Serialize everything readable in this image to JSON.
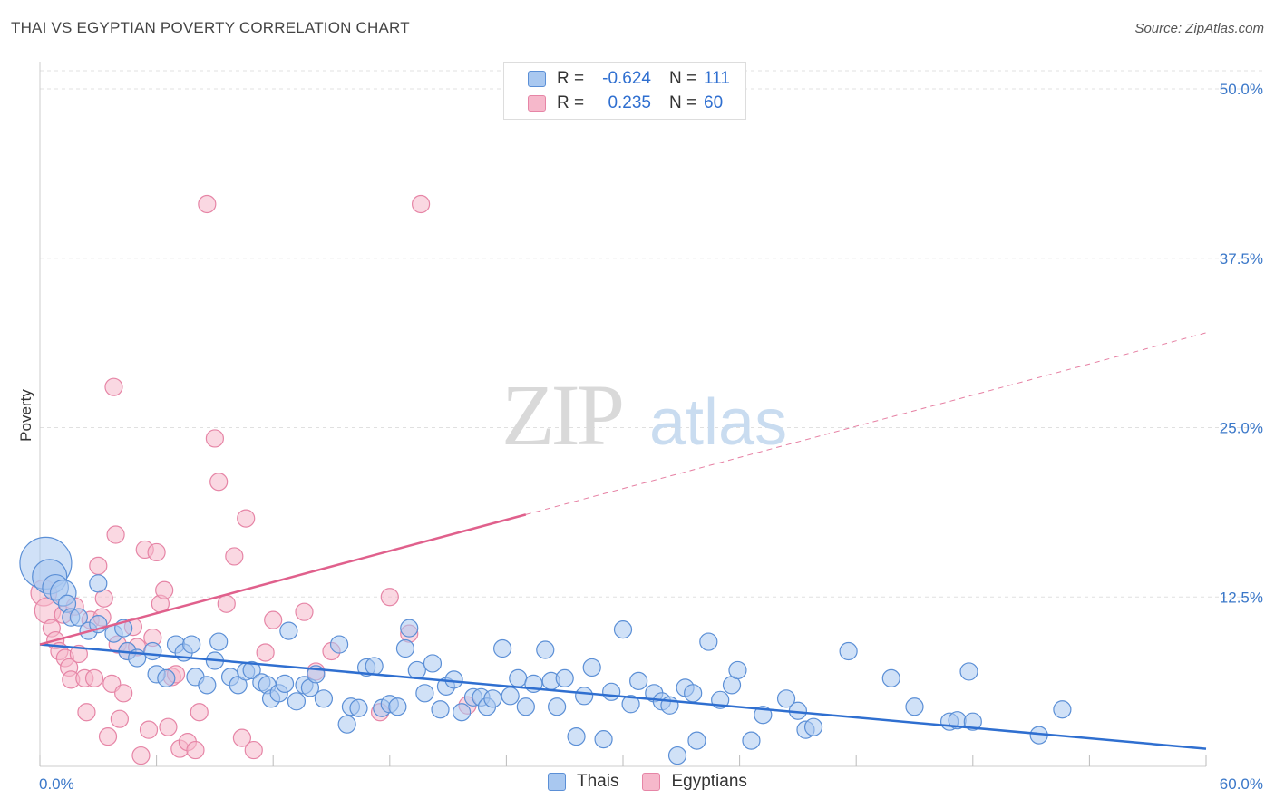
{
  "title": "THAI VS EGYPTIAN POVERTY CORRELATION CHART",
  "source": "Source: ZipAtlas.com",
  "watermark": {
    "zip": "ZIP",
    "atlas": "atlas"
  },
  "colors": {
    "thais_fill": "#a9c8f0",
    "thais_stroke": "#5b8fd6",
    "thais_line": "#2f6fd0",
    "egyptians_fill": "#f6b8cb",
    "egyptians_stroke": "#e685a6",
    "egyptians_line": "#e0608c",
    "tick_label": "#3b78c9",
    "grid": "#e0e0e0"
  },
  "legend_top": {
    "rows": [
      {
        "series": "thais",
        "r_label": "R =",
        "r_value": "-0.624",
        "n_label": "N =",
        "n_value": "111"
      },
      {
        "series": "egyptians",
        "r_label": "R =",
        "r_value": "0.235",
        "n_label": "N =",
        "n_value": "60"
      }
    ]
  },
  "legend_bottom": [
    "Thais",
    "Egyptians"
  ],
  "chart_data": {
    "type": "scatter",
    "ylabel": "Poverty",
    "xlim": [
      0,
      60
    ],
    "ylim": [
      0,
      50
    ],
    "x_tick_labels": {
      "min": "0.0%",
      "max": "60.0%"
    },
    "y_ticks": [
      {
        "value": 12.5,
        "label": "12.5%"
      },
      {
        "value": 25,
        "label": "25.0%"
      },
      {
        "value": 37.5,
        "label": "37.5%"
      },
      {
        "value": 50,
        "label": "50.0%"
      }
    ],
    "grid": true,
    "legend_position": "top-center",
    "series": [
      {
        "name": "Thais",
        "trend": {
          "x_start": 0,
          "y_start": 9.0,
          "x_end": 60,
          "y_end": 1.3,
          "dashed_from": null
        },
        "points": [
          [
            0.3,
            15.0,
            3
          ],
          [
            0.5,
            14.0,
            2
          ],
          [
            0.8,
            13.2,
            1.5
          ],
          [
            1.2,
            12.8,
            1.5
          ],
          [
            1.4,
            12.0,
            1
          ],
          [
            1.6,
            11.0,
            1
          ],
          [
            2.0,
            11.0,
            1
          ],
          [
            3.0,
            13.5,
            1
          ],
          [
            2.5,
            10.0,
            1
          ],
          [
            3.0,
            10.5,
            1
          ],
          [
            3.8,
            9.8,
            1
          ],
          [
            4.3,
            10.2,
            1
          ],
          [
            4.5,
            8.5,
            1
          ],
          [
            5.0,
            8.0,
            1
          ],
          [
            5.8,
            8.5,
            1
          ],
          [
            6.0,
            6.8,
            1
          ],
          [
            6.5,
            6.5,
            1
          ],
          [
            7.0,
            9.0,
            1
          ],
          [
            7.4,
            8.4,
            1
          ],
          [
            7.8,
            9.0,
            1
          ],
          [
            8.0,
            6.6,
            1
          ],
          [
            8.6,
            6.0,
            1
          ],
          [
            9.0,
            7.8,
            1
          ],
          [
            9.2,
            9.2,
            1
          ],
          [
            9.8,
            6.6,
            1
          ],
          [
            10.2,
            6.0,
            1
          ],
          [
            10.6,
            7.0,
            1
          ],
          [
            10.9,
            7.1,
            1
          ],
          [
            11.4,
            6.2,
            1
          ],
          [
            11.7,
            6.0,
            1
          ],
          [
            11.9,
            5.0,
            1
          ],
          [
            12.3,
            5.4,
            1
          ],
          [
            12.6,
            6.1,
            1
          ],
          [
            12.8,
            10.0,
            1
          ],
          [
            13.2,
            4.8,
            1
          ],
          [
            13.6,
            6.0,
            1
          ],
          [
            13.9,
            5.8,
            1
          ],
          [
            14.2,
            6.8,
            1
          ],
          [
            14.6,
            5.0,
            1
          ],
          [
            15.4,
            9.0,
            1
          ],
          [
            15.8,
            3.1,
            1
          ],
          [
            16.0,
            4.4,
            1
          ],
          [
            16.4,
            4.3,
            1
          ],
          [
            16.8,
            7.3,
            1
          ],
          [
            17.2,
            7.4,
            1
          ],
          [
            17.6,
            4.3,
            1
          ],
          [
            18.0,
            4.6,
            1
          ],
          [
            18.4,
            4.4,
            1
          ],
          [
            18.8,
            8.7,
            1
          ],
          [
            19.0,
            10.2,
            1
          ],
          [
            19.4,
            7.1,
            1
          ],
          [
            19.8,
            5.4,
            1
          ],
          [
            20.2,
            7.6,
            1
          ],
          [
            20.6,
            4.2,
            1
          ],
          [
            20.9,
            5.9,
            1
          ],
          [
            21.3,
            6.4,
            1
          ],
          [
            21.7,
            4.0,
            1
          ],
          [
            22.3,
            5.1,
            1
          ],
          [
            22.7,
            5.1,
            1
          ],
          [
            23.0,
            4.4,
            1
          ],
          [
            23.3,
            5.0,
            1
          ],
          [
            23.8,
            8.7,
            1
          ],
          [
            24.2,
            5.2,
            1
          ],
          [
            24.6,
            6.5,
            1
          ],
          [
            25.0,
            4.4,
            1
          ],
          [
            25.4,
            6.1,
            1
          ],
          [
            26.0,
            8.6,
            1
          ],
          [
            26.3,
            6.3,
            1
          ],
          [
            26.6,
            4.4,
            1
          ],
          [
            27.0,
            6.5,
            1
          ],
          [
            27.6,
            2.2,
            1
          ],
          [
            28.0,
            5.2,
            1
          ],
          [
            28.4,
            7.3,
            1
          ],
          [
            29.0,
            2.0,
            1
          ],
          [
            29.4,
            5.5,
            1
          ],
          [
            30.0,
            10.1,
            1
          ],
          [
            30.4,
            4.6,
            1
          ],
          [
            30.8,
            6.3,
            1
          ],
          [
            31.6,
            5.4,
            1
          ],
          [
            32.0,
            4.8,
            1
          ],
          [
            32.4,
            4.5,
            1
          ],
          [
            32.8,
            0.8,
            1
          ],
          [
            33.2,
            5.8,
            1
          ],
          [
            33.6,
            5.4,
            1
          ],
          [
            33.8,
            1.9,
            1
          ],
          [
            34.4,
            9.2,
            1
          ],
          [
            35.0,
            4.9,
            1
          ],
          [
            35.6,
            6.0,
            1
          ],
          [
            35.9,
            7.1,
            1
          ],
          [
            36.6,
            1.9,
            1
          ],
          [
            37.2,
            3.8,
            1
          ],
          [
            38.4,
            5.0,
            1
          ],
          [
            39.0,
            4.1,
            1
          ],
          [
            39.4,
            2.7,
            1
          ],
          [
            39.8,
            2.9,
            1
          ],
          [
            41.6,
            8.5,
            1
          ],
          [
            43.8,
            6.5,
            1
          ],
          [
            45.0,
            4.4,
            1
          ],
          [
            46.8,
            3.3,
            1
          ],
          [
            47.2,
            3.4,
            1
          ],
          [
            47.8,
            7.0,
            1
          ],
          [
            48.0,
            3.3,
            1
          ],
          [
            51.4,
            2.3,
            1
          ],
          [
            52.6,
            4.2,
            1
          ]
        ]
      },
      {
        "name": "Egyptians",
        "trend": {
          "x_start": 0,
          "y_start": 9.0,
          "x_end": 60,
          "y_end": 32.0,
          "dashed_from": 25
        },
        "points": [
          [
            0.2,
            12.8,
            1.5
          ],
          [
            0.4,
            11.5,
            1.5
          ],
          [
            0.6,
            10.2,
            1
          ],
          [
            0.8,
            9.3,
            1
          ],
          [
            1.0,
            8.5,
            1
          ],
          [
            1.2,
            11.2,
            1
          ],
          [
            1.3,
            8.0,
            1
          ],
          [
            1.5,
            7.3,
            1
          ],
          [
            1.6,
            6.4,
            1
          ],
          [
            1.8,
            11.8,
            1
          ],
          [
            2.0,
            8.3,
            1
          ],
          [
            2.3,
            6.5,
            1
          ],
          [
            2.4,
            4.0,
            1
          ],
          [
            2.6,
            10.8,
            1
          ],
          [
            2.8,
            6.5,
            1
          ],
          [
            3.0,
            14.8,
            1
          ],
          [
            3.2,
            11.0,
            1
          ],
          [
            3.3,
            12.4,
            1
          ],
          [
            3.5,
            2.2,
            1
          ],
          [
            3.7,
            6.1,
            1
          ],
          [
            3.8,
            28.0,
            1
          ],
          [
            3.9,
            17.1,
            1
          ],
          [
            4.0,
            9.0,
            1
          ],
          [
            4.1,
            3.5,
            1
          ],
          [
            4.3,
            5.4,
            1
          ],
          [
            4.5,
            8.5,
            1
          ],
          [
            4.8,
            10.3,
            1
          ],
          [
            5.0,
            8.8,
            1
          ],
          [
            5.2,
            0.8,
            1
          ],
          [
            5.4,
            16.0,
            1
          ],
          [
            5.6,
            2.7,
            1
          ],
          [
            5.8,
            9.5,
            1
          ],
          [
            6.0,
            15.8,
            1
          ],
          [
            6.2,
            12.0,
            1
          ],
          [
            6.4,
            13.0,
            1
          ],
          [
            6.6,
            2.9,
            1
          ],
          [
            6.8,
            6.6,
            1
          ],
          [
            7.0,
            6.8,
            1
          ],
          [
            7.2,
            1.3,
            1
          ],
          [
            7.6,
            1.8,
            1
          ],
          [
            8.0,
            1.2,
            1
          ],
          [
            8.2,
            4.0,
            1
          ],
          [
            8.6,
            41.5,
            1
          ],
          [
            9.0,
            24.2,
            1
          ],
          [
            9.2,
            21.0,
            1
          ],
          [
            9.6,
            12.0,
            1
          ],
          [
            10.0,
            15.5,
            1
          ],
          [
            10.4,
            2.1,
            1
          ],
          [
            10.6,
            18.3,
            1
          ],
          [
            11.0,
            1.2,
            1
          ],
          [
            11.6,
            8.4,
            1
          ],
          [
            12.0,
            10.8,
            1
          ],
          [
            13.6,
            11.4,
            1
          ],
          [
            14.2,
            7.0,
            1
          ],
          [
            15.0,
            8.5,
            1
          ],
          [
            17.5,
            4.0,
            1
          ],
          [
            18.0,
            12.5,
            1
          ],
          [
            19.0,
            9.8,
            1
          ],
          [
            19.6,
            41.5,
            1
          ],
          [
            22.0,
            4.5,
            1
          ]
        ]
      }
    ]
  }
}
